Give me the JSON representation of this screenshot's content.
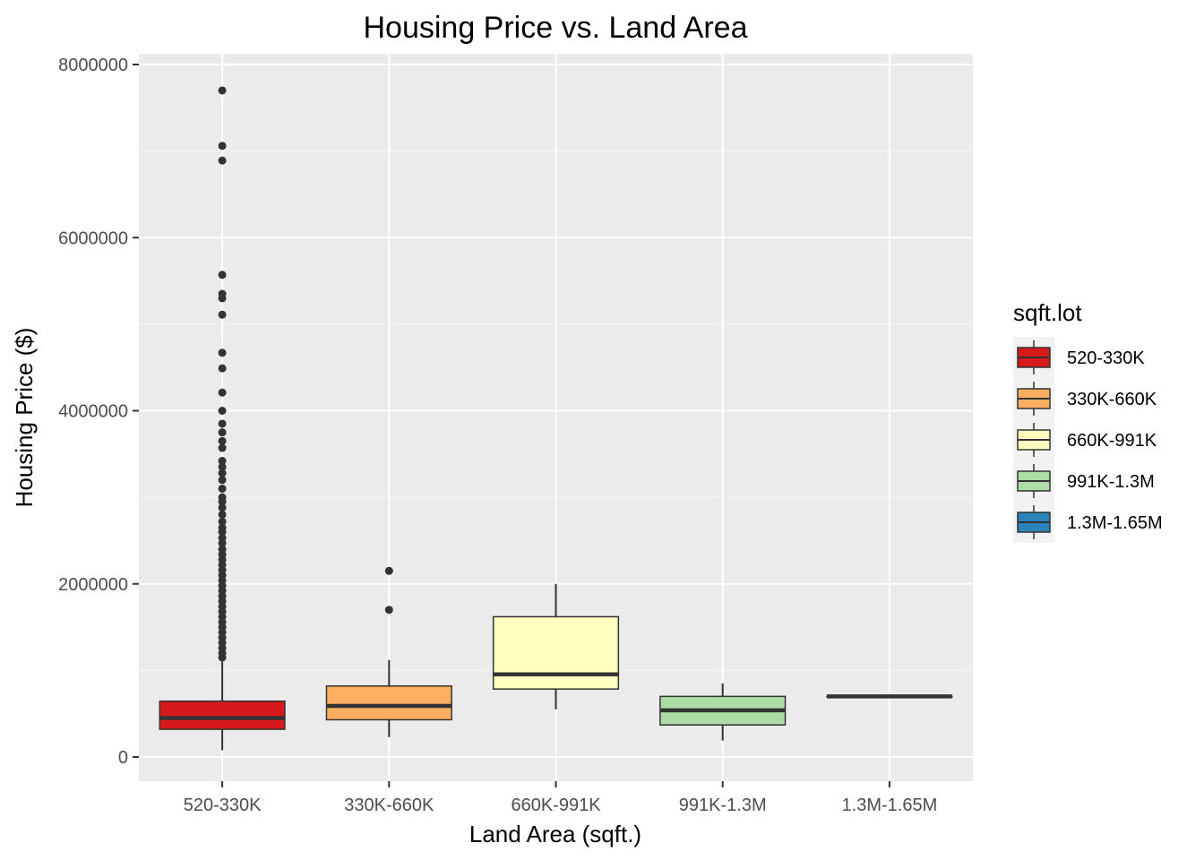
{
  "chart_data": {
    "type": "box",
    "title": "Housing Price vs. Land Area",
    "xlabel": "Land Area (sqft.)",
    "ylabel": "Housing Price ($)",
    "ylim": [
      -300000,
      8080000
    ],
    "yticks": [
      0,
      2000000,
      4000000,
      6000000,
      8000000
    ],
    "ytick_labels": [
      "0",
      "2000000",
      "4000000",
      "6000000",
      "8000000"
    ],
    "grid": true,
    "legend": {
      "title": "sqft.lot",
      "position": "right"
    },
    "categories": [
      "520-330K",
      "330K-660K",
      "660K-991K",
      "991K-1.3M",
      "1.3M-1.65M"
    ],
    "series": [
      {
        "name": "520-330K",
        "color": "#d7191c",
        "whisker_low": 78000,
        "q1": 320000,
        "median": 450000,
        "q3": 645000,
        "whisker_high": 1130000,
        "outliers": [
          7700000,
          7060000,
          6890000,
          5570000,
          5350000,
          5300000,
          5110000,
          4670000,
          4490000,
          4210000,
          4000000,
          3850000,
          3750000,
          3650000,
          3570000,
          3420000,
          3350000,
          3280000,
          3200000,
          3100000,
          3000000,
          2950000,
          2880000,
          2800000,
          2720000,
          2650000,
          2600000,
          2530000,
          2470000,
          2400000,
          2340000,
          2280000,
          2220000,
          2160000,
          2100000,
          2040000,
          1980000,
          1920000,
          1860000,
          1800000,
          1740000,
          1680000,
          1620000,
          1560000,
          1500000,
          1440000,
          1380000,
          1320000,
          1260000,
          1200000,
          1150000
        ]
      },
      {
        "name": "330K-660K",
        "color": "#fdae61",
        "whisker_low": 230000,
        "q1": 430000,
        "median": 590000,
        "q3": 820000,
        "whisker_high": 1120000,
        "outliers": [
          2150000,
          1700000
        ]
      },
      {
        "name": "660K-991K",
        "color": "#ffffbf",
        "whisker_low": 550000,
        "q1": 785000,
        "median": 955000,
        "q3": 1620000,
        "whisker_high": 2000000,
        "outliers": []
      },
      {
        "name": "991K-1.3M",
        "color": "#abdda4",
        "whisker_low": 190000,
        "q1": 370000,
        "median": 540000,
        "q3": 700000,
        "whisker_high": 850000,
        "outliers": []
      },
      {
        "name": "1.3M-1.65M",
        "color": "#2b83ba",
        "whisker_low": 700000,
        "q1": 700000,
        "median": 700000,
        "q3": 700000,
        "whisker_high": 700000,
        "outliers": []
      }
    ]
  }
}
